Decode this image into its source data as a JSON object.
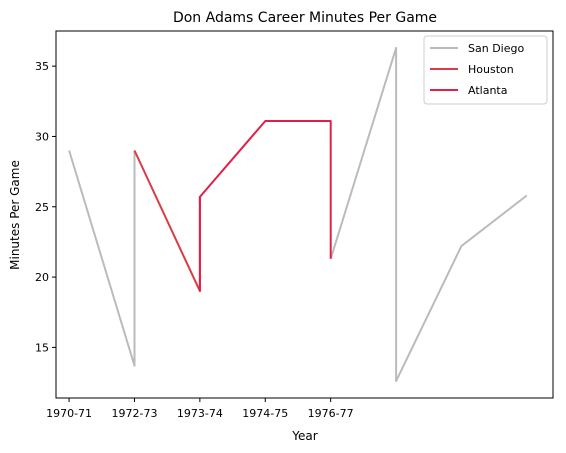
{
  "chart_data": {
    "type": "line",
    "title": "Don Adams  Career Minutes Per Game",
    "xlabel": "Year",
    "ylabel": "Minutes Per Game",
    "x_tick_labels": [
      "1970-71",
      "1972-73",
      "1973-74",
      "1974-75",
      "1976-77"
    ],
    "y_ticks": [
      15,
      20,
      25,
      30,
      35
    ],
    "xlim": [
      -0.2,
      7.4
    ],
    "ylim": [
      11.4,
      37.5
    ],
    "legend_position": "top-right",
    "grid": false,
    "series": [
      {
        "name": "San Diego",
        "color": "#bbbbbb",
        "points": [
          {
            "x": 0,
            "y": 29.0
          },
          {
            "x": 1,
            "y": 13.7
          },
          {
            "x": 1,
            "y": 29.0
          }
        ]
      },
      {
        "name": "San Diego",
        "color": "#bbbbbb",
        "points": [
          {
            "x": 4,
            "y": 21.3
          },
          {
            "x": 5,
            "y": 36.3
          },
          {
            "x": 5,
            "y": 12.6
          },
          {
            "x": 6,
            "y": 22.2
          },
          {
            "x": 7,
            "y": 25.8
          }
        ]
      },
      {
        "name": "Houston",
        "color": "#dc3a44",
        "points": [
          {
            "x": 1,
            "y": 29.0
          },
          {
            "x": 2,
            "y": 19.0
          },
          {
            "x": 2,
            "y": 25.7
          }
        ]
      },
      {
        "name": "Atlanta",
        "color": "#e0204a",
        "points": [
          {
            "x": 2,
            "y": 19.0
          },
          {
            "x": 2,
            "y": 25.7
          },
          {
            "x": 3,
            "y": 31.1
          },
          {
            "x": 4,
            "y": 31.1
          },
          {
            "x": 4,
            "y": 21.3
          }
        ]
      }
    ],
    "legend": [
      {
        "name": "San Diego",
        "color": "#bbbbbb"
      },
      {
        "name": "Houston",
        "color": "#dc3a44"
      },
      {
        "name": "Atlanta",
        "color": "#e0204a"
      }
    ]
  }
}
